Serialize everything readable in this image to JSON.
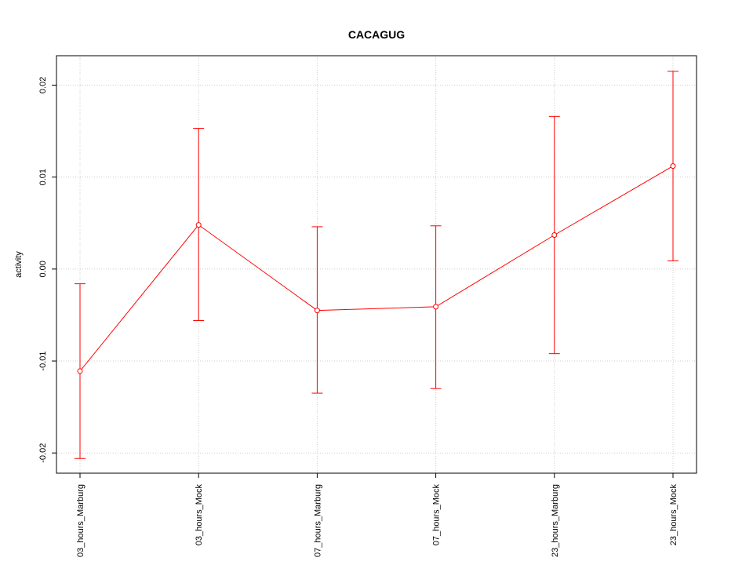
{
  "chart_data": {
    "type": "line",
    "title": "CACAGUG",
    "xlabel": "",
    "ylabel": "activity",
    "categories": [
      "03_hours_Marburg",
      "03_hours_Mock",
      "07_hours_Marburg",
      "07_hours_Mock",
      "23_hours_Marburg",
      "23_hours_Mock"
    ],
    "series": [
      {
        "values": [
          -0.0111,
          0.0048,
          -0.0045,
          -0.0041,
          0.0037,
          0.0112
        ],
        "upper": [
          -0.0016,
          0.0153,
          0.0046,
          0.0047,
          0.0166,
          0.0215
        ],
        "lower": [
          -0.0206,
          -0.0056,
          -0.0135,
          -0.013,
          -0.0092,
          0.0009
        ],
        "color": "#ff0000"
      }
    ],
    "yticks": [
      "-0.02",
      "-0.01",
      "0.00",
      "0.01",
      "0.02"
    ],
    "ylim": [
      -0.0222,
      0.0232
    ],
    "grid": true,
    "reference_line": 0
  }
}
